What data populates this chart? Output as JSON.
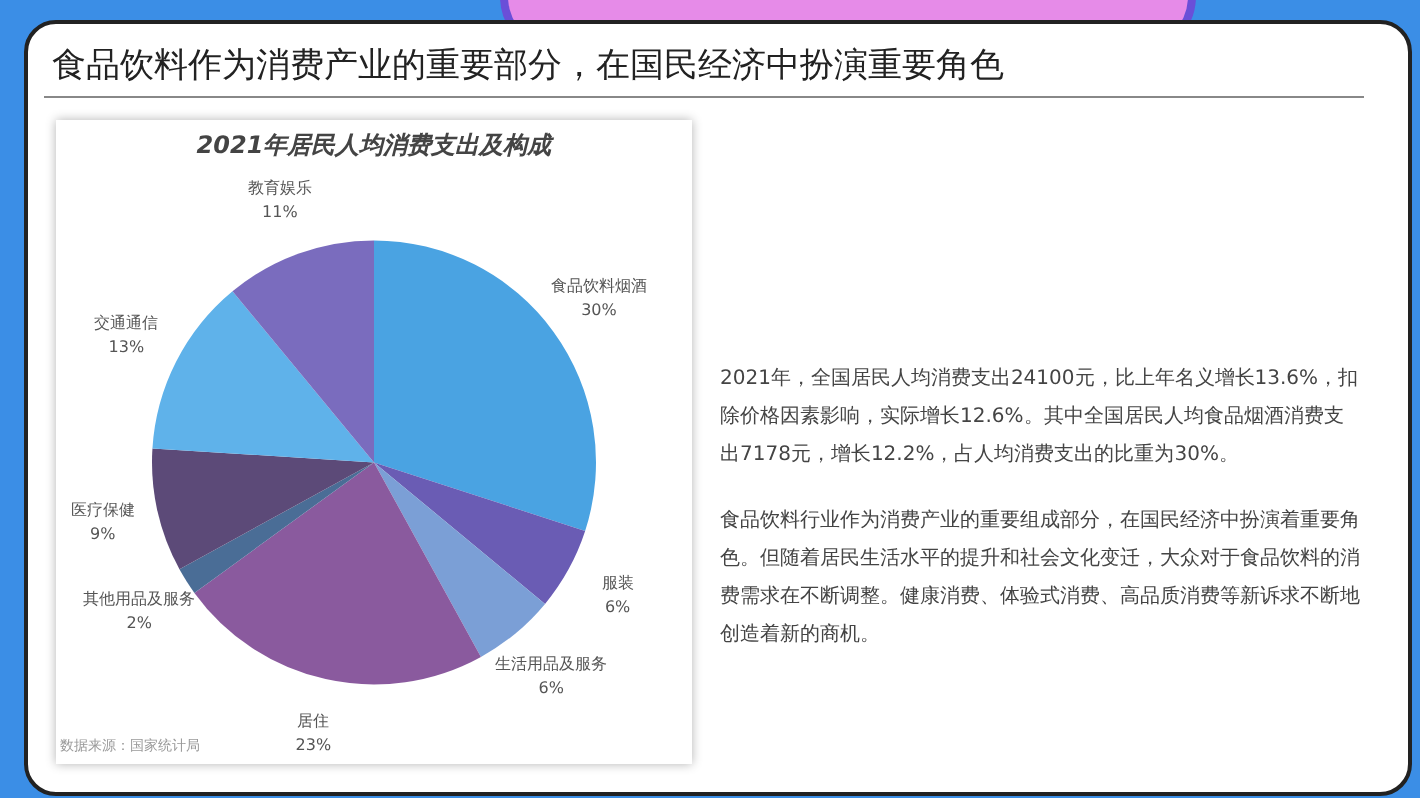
{
  "chart_data": {
    "type": "pie",
    "title": "食品饮料作为消费产业的重要部分，在国民经济中扮演重要角色",
    "subtitle": "2021年居民人均消费支出及构成",
    "categories": [
      "食品饮料烟酒",
      "服装",
      "生活用品及服务",
      "居住",
      "其他用品及服务",
      "医疗保健",
      "交通通信",
      "教育娱乐"
    ],
    "values": [
      30,
      6,
      6,
      23,
      2,
      9,
      13,
      11
    ],
    "colors": [
      "#4aa3e2",
      "#6a5cb4",
      "#7b9fd6",
      "#8a5a9e",
      "#4a6d96",
      "#5c4a78",
      "#5fb2ea",
      "#7a6cbe"
    ],
    "value_labels": [
      "30%",
      "6%",
      "6%",
      "23%",
      "2%",
      "9%",
      "13%",
      "11%"
    ],
    "legend": false,
    "annotations": [
      "数据来源：国家统计局",
      "2021年，全国居民人均消费支出24100元，比上年名义增长13.6%，扣除价格因素影响，实际增长12.6%。其中全国居民人均食品烟酒消费支出7178元，增长12.2%，占人均消费支出的比重为30%。",
      "食品饮料行业作为消费产业的重要组成部分，在国民经济中扮演着重要角色。但随着居民生活水平的提升和社会文化变迁，大众对于食品饮料的消费需求在不断调整。健康消费、体验式消费、高品质消费等新诉求不断地创造着新的商机。"
    ]
  }
}
